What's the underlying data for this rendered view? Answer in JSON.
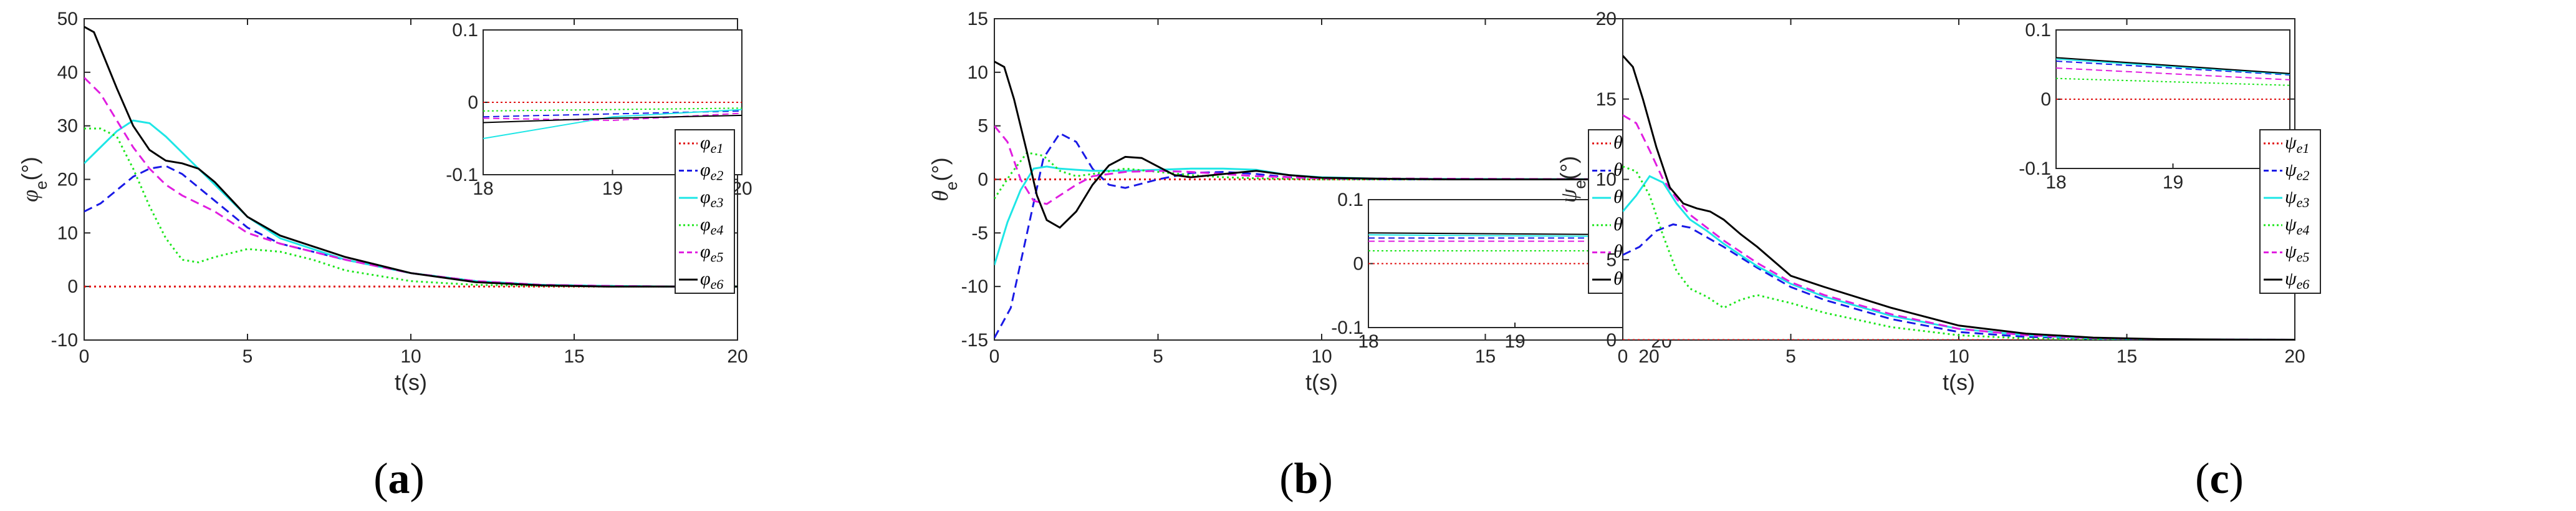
{
  "chart_data": [
    {
      "type": "line",
      "panel": "a",
      "caption": "(a)",
      "xlabel": "t(s)",
      "ylabel_symbol": "φ",
      "ylabel_sub": "e",
      "ylabel_unit": "(°)",
      "xlim": [
        0,
        20
      ],
      "ylim": [
        -10,
        50
      ],
      "xticks": [
        0,
        5,
        10,
        15,
        20
      ],
      "yticks": [
        -10,
        0,
        10,
        20,
        30,
        40,
        50
      ],
      "legend_position": "right",
      "series": [
        {
          "name": "φe1",
          "symbol": "φ",
          "sub": "e1",
          "color": "#e01010",
          "style": "dotted",
          "x": [
            0,
            20
          ],
          "y": [
            0,
            0
          ]
        },
        {
          "name": "φe2",
          "symbol": "φ",
          "sub": "e2",
          "color": "#1a1ae6",
          "style": "dashed",
          "x": [
            0,
            0.5,
            1,
            1.5,
            2,
            2.5,
            3,
            4,
            5,
            6,
            8,
            10,
            12,
            14,
            16,
            18,
            20
          ],
          "y": [
            14,
            15.5,
            18,
            20.5,
            22,
            22.5,
            21,
            16,
            11,
            8,
            5,
            2.5,
            1,
            0.3,
            0.1,
            0,
            0
          ]
        },
        {
          "name": "φe3",
          "symbol": "φ",
          "sub": "e3",
          "color": "#1ee6e6",
          "style": "solid",
          "x": [
            0,
            0.5,
            1,
            1.5,
            2,
            2.5,
            3,
            4,
            5,
            6,
            8,
            10,
            12,
            14,
            16,
            18,
            20
          ],
          "y": [
            23,
            26,
            29,
            31,
            30.5,
            28,
            25,
            19,
            13,
            9,
            5,
            2.5,
            1,
            0.3,
            0.1,
            0,
            0
          ]
        },
        {
          "name": "φe4",
          "symbol": "φ",
          "sub": "e4",
          "color": "#1ee61e",
          "style": "dotted",
          "x": [
            0,
            0.5,
            1,
            1.5,
            2,
            2.5,
            3,
            3.5,
            4,
            5,
            6,
            7,
            8,
            10,
            12,
            14,
            16,
            18,
            20
          ],
          "y": [
            29.5,
            29.5,
            28,
            22,
            15,
            9,
            5,
            4.5,
            5.5,
            7,
            6.5,
            5,
            3,
            1,
            0.3,
            0.1,
            0,
            0,
            0
          ]
        },
        {
          "name": "φe5",
          "symbol": "φ",
          "sub": "e5",
          "color": "#e01ee0",
          "style": "dashed",
          "x": [
            0,
            0.5,
            1,
            1.5,
            2,
            2.5,
            3,
            4,
            5,
            6,
            8,
            10,
            12,
            14,
            16,
            18,
            20
          ],
          "y": [
            39,
            36,
            31,
            26,
            22,
            19,
            17,
            14,
            10,
            8,
            5,
            2.5,
            1,
            0.3,
            0.1,
            0,
            0
          ]
        },
        {
          "name": "φe6",
          "symbol": "φ",
          "sub": "e6",
          "color": "#000000",
          "style": "solid",
          "x": [
            0,
            0.3,
            0.6,
            1,
            1.5,
            2,
            2.5,
            3,
            3.5,
            4,
            5,
            6,
            8,
            10,
            12,
            14,
            16,
            18,
            20
          ],
          "y": [
            48.5,
            47.5,
            43,
            37,
            30,
            25.5,
            23.5,
            23,
            22,
            19.5,
            13,
            9.5,
            5.5,
            2.5,
            0.8,
            0.2,
            0,
            0,
            0
          ]
        }
      ],
      "inset": {
        "xlim": [
          18,
          20
        ],
        "ylim": [
          -0.1,
          0.1
        ],
        "xticks": [
          18,
          19,
          20
        ],
        "yticks": [
          -0.1,
          0,
          0.1
        ],
        "series": [
          {
            "ref": "φe1",
            "x": [
              18,
              20
            ],
            "y": [
              0.0,
              0.0
            ]
          },
          {
            "ref": "φe2",
            "x": [
              18,
              20
            ],
            "y": [
              -0.02,
              -0.012
            ]
          },
          {
            "ref": "φe3",
            "x": [
              18,
              19,
              20
            ],
            "y": [
              -0.05,
              -0.02,
              -0.01
            ]
          },
          {
            "ref": "φe4",
            "x": [
              18,
              20
            ],
            "y": [
              -0.012,
              -0.008
            ]
          },
          {
            "ref": "φe5",
            "x": [
              18,
              19,
              20
            ],
            "y": [
              -0.022,
              -0.025,
              -0.015
            ]
          },
          {
            "ref": "φe6",
            "x": [
              18,
              19,
              20
            ],
            "y": [
              -0.028,
              -0.022,
              -0.018
            ]
          }
        ]
      }
    },
    {
      "type": "line",
      "panel": "b",
      "caption": "(b)",
      "xlabel": "t(s)",
      "ylabel_symbol": "θ",
      "ylabel_sub": "e",
      "ylabel_unit": "(°)",
      "xlim": [
        0,
        20
      ],
      "ylim": [
        -15,
        15
      ],
      "xticks": [
        0,
        5,
        10,
        15,
        20
      ],
      "yticks": [
        -15,
        -10,
        -5,
        0,
        5,
        10,
        15
      ],
      "legend_position": "right",
      "series": [
        {
          "name": "θe1",
          "symbol": "θ",
          "sub": "e1",
          "color": "#e01010",
          "style": "dotted",
          "x": [
            0,
            20
          ],
          "y": [
            0,
            0
          ]
        },
        {
          "name": "θe2",
          "symbol": "θ",
          "sub": "e2",
          "color": "#1a1ae6",
          "style": "dashed",
          "x": [
            0,
            0.5,
            1,
            1.5,
            2,
            2.5,
            3,
            3.5,
            4,
            5,
            6,
            7,
            8,
            9,
            10,
            12,
            14,
            20
          ],
          "y": [
            -14.8,
            -12,
            -5,
            2,
            4.3,
            3.5,
            1,
            -0.5,
            -0.8,
            0,
            0.6,
            0.7,
            0.5,
            0.2,
            0.1,
            0,
            0,
            0
          ]
        },
        {
          "name": "θe3",
          "symbol": "θ",
          "sub": "e3",
          "color": "#1ee6e6",
          "style": "solid",
          "x": [
            0,
            0.4,
            0.8,
            1.2,
            1.6,
            2,
            2.5,
            3,
            4,
            5,
            6,
            7,
            8,
            9,
            10,
            12,
            20
          ],
          "y": [
            -8,
            -4,
            -1,
            1,
            1.2,
            1,
            0.9,
            0.8,
            0.8,
            0.9,
            1,
            1,
            0.9,
            0.4,
            0.2,
            0.05,
            0
          ]
        },
        {
          "name": "θe4",
          "symbol": "θ",
          "sub": "e4",
          "color": "#1ee61e",
          "style": "dotted",
          "x": [
            0,
            0.5,
            1,
            1.5,
            2,
            2.5,
            3,
            4,
            5,
            6,
            7,
            8,
            10,
            20
          ],
          "y": [
            -1.8,
            0.5,
            2.5,
            2.2,
            0.8,
            0.3,
            0.5,
            1,
            0.7,
            0.4,
            0.2,
            0.1,
            0,
            0
          ]
        },
        {
          "name": "θe5",
          "symbol": "θ",
          "sub": "e5",
          "color": "#e01ee0",
          "style": "dashed",
          "x": [
            0,
            0.4,
            0.8,
            1.2,
            1.6,
            2,
            2.5,
            3,
            4,
            5,
            6,
            7,
            8,
            10,
            20
          ],
          "y": [
            5,
            3.5,
            0,
            -2,
            -2.3,
            -1.5,
            -0.5,
            0.3,
            0.7,
            0.8,
            0.7,
            0.5,
            0.3,
            0.1,
            0
          ]
        },
        {
          "name": "θe6",
          "symbol": "θ",
          "sub": "e6",
          "color": "#000000",
          "style": "solid",
          "x": [
            0,
            0.3,
            0.6,
            1,
            1.3,
            1.6,
            2,
            2.5,
            3,
            3.5,
            4,
            4.5,
            5,
            5.5,
            6,
            7,
            8,
            9,
            10,
            12,
            14,
            20
          ],
          "y": [
            11,
            10.5,
            7.5,
            2.5,
            -1.5,
            -3.8,
            -4.5,
            -3,
            -0.5,
            1.3,
            2.1,
            2,
            1.2,
            0.4,
            0.2,
            0.5,
            0.8,
            0.4,
            0.15,
            0.05,
            0,
            0
          ]
        }
      ],
      "inset": {
        "xlim": [
          18,
          20
        ],
        "ylim": [
          -0.1,
          0.1
        ],
        "xticks": [
          18,
          19,
          20
        ],
        "yticks": [
          -0.1,
          0,
          0.1
        ],
        "series": [
          {
            "ref": "θe1",
            "x": [
              18,
              20
            ],
            "y": [
              0.0,
              0.0
            ]
          },
          {
            "ref": "θe2",
            "x": [
              18,
              20
            ],
            "y": [
              0.04,
              0.04
            ]
          },
          {
            "ref": "θe3",
            "x": [
              18,
              20
            ],
            "y": [
              0.045,
              0.042
            ]
          },
          {
            "ref": "θe4",
            "x": [
              18,
              20
            ],
            "y": [
              0.02,
              0.02
            ]
          },
          {
            "ref": "θe5",
            "x": [
              18,
              20
            ],
            "y": [
              0.035,
              0.035
            ]
          },
          {
            "ref": "θe6",
            "x": [
              18,
              20
            ],
            "y": [
              0.048,
              0.045
            ]
          }
        ]
      }
    },
    {
      "type": "line",
      "panel": "c",
      "caption": "(c)",
      "xlabel": "t(s)",
      "ylabel_symbol": "ψ",
      "ylabel_sub": "e",
      "ylabel_unit": "(°)",
      "xlim": [
        0,
        20
      ],
      "ylim": [
        0,
        20
      ],
      "xticks": [
        0,
        5,
        10,
        15,
        20
      ],
      "yticks": [
        0,
        5,
        10,
        15,
        20
      ],
      "legend_position": "right",
      "series": [
        {
          "name": "ψe1",
          "symbol": "ψ",
          "sub": "e1",
          "color": "#e01010",
          "style": "dotted",
          "x": [
            0,
            20
          ],
          "y": [
            0,
            0
          ]
        },
        {
          "name": "ψe2",
          "symbol": "ψ",
          "sub": "e2",
          "color": "#1a1ae6",
          "style": "dashed",
          "x": [
            0,
            0.5,
            1,
            1.5,
            2,
            2.5,
            3,
            4,
            5,
            6,
            8,
            10,
            12,
            14,
            16,
            18,
            20
          ],
          "y": [
            5.3,
            5.8,
            6.8,
            7.2,
            7,
            6.4,
            5.8,
            4.5,
            3.3,
            2.5,
            1.3,
            0.5,
            0.2,
            0.08,
            0.03,
            0,
            0
          ]
        },
        {
          "name": "ψe3",
          "symbol": "ψ",
          "sub": "e3",
          "color": "#1ee6e6",
          "style": "solid",
          "x": [
            0,
            0.4,
            0.8,
            1.2,
            1.6,
            2,
            2.5,
            3,
            4,
            5,
            6,
            8,
            10,
            12,
            14,
            16,
            18,
            20
          ],
          "y": [
            8,
            9,
            10.2,
            9.8,
            8.5,
            7.5,
            6.8,
            6,
            4.6,
            3.5,
            2.7,
            1.5,
            0.7,
            0.3,
            0.1,
            0.05,
            0.03,
            0.02
          ]
        },
        {
          "name": "ψe4",
          "symbol": "ψ",
          "sub": "e4",
          "color": "#1ee61e",
          "style": "dotted",
          "x": [
            0,
            0.4,
            0.8,
            1.2,
            1.6,
            2,
            2.5,
            3,
            3.5,
            4,
            5,
            6,
            8,
            10,
            12,
            14,
            16,
            18,
            20
          ],
          "y": [
            10.8,
            10.5,
            9,
            6.5,
            4.3,
            3.2,
            2.7,
            2,
            2.5,
            2.8,
            2.3,
            1.7,
            0.8,
            0.3,
            0.1,
            0.04,
            0.02,
            0.01,
            0
          ]
        },
        {
          "name": "ψe5",
          "symbol": "ψ",
          "sub": "e5",
          "color": "#e01ee0",
          "style": "dashed",
          "x": [
            0,
            0.4,
            0.8,
            1.2,
            1.6,
            2,
            2.5,
            3,
            4,
            5,
            6,
            8,
            10,
            12,
            14,
            16,
            18,
            20
          ],
          "y": [
            14,
            13.5,
            11.8,
            10,
            8.8,
            7.8,
            7,
            6.2,
            4.8,
            3.6,
            2.8,
            1.6,
            0.7,
            0.3,
            0.12,
            0.05,
            0.03,
            0.02
          ]
        },
        {
          "name": "ψe6",
          "symbol": "ψ",
          "sub": "e6",
          "color": "#000000",
          "style": "solid",
          "x": [
            0,
            0.3,
            0.6,
            1,
            1.4,
            1.8,
            2.2,
            2.6,
            3,
            3.5,
            4,
            5,
            6,
            8,
            10,
            12,
            14,
            16,
            18,
            20
          ],
          "y": [
            17.7,
            17,
            15,
            12,
            9.5,
            8.5,
            8.2,
            8,
            7.5,
            6.6,
            5.8,
            4,
            3.3,
            2,
            0.9,
            0.4,
            0.15,
            0.06,
            0.03,
            0.02
          ]
        }
      ],
      "inset": {
        "xlim": [
          18,
          20
        ],
        "ylim": [
          -0.1,
          0.1
        ],
        "xticks": [
          18,
          19,
          20
        ],
        "yticks": [
          -0.1,
          0,
          0.1
        ],
        "series": [
          {
            "ref": "ψe1",
            "x": [
              18,
              20
            ],
            "y": [
              0.0,
              0.0
            ]
          },
          {
            "ref": "ψe2",
            "x": [
              18,
              20
            ],
            "y": [
              0.055,
              0.035
            ]
          },
          {
            "ref": "ψe3",
            "x": [
              18,
              20
            ],
            "y": [
              0.058,
              0.036
            ]
          },
          {
            "ref": "ψe4",
            "x": [
              18,
              20
            ],
            "y": [
              0.03,
              0.02
            ]
          },
          {
            "ref": "ψe5",
            "x": [
              18,
              20
            ],
            "y": [
              0.045,
              0.028
            ]
          },
          {
            "ref": "ψe6",
            "x": [
              18,
              20
            ],
            "y": [
              0.06,
              0.037
            ]
          }
        ]
      }
    }
  ]
}
